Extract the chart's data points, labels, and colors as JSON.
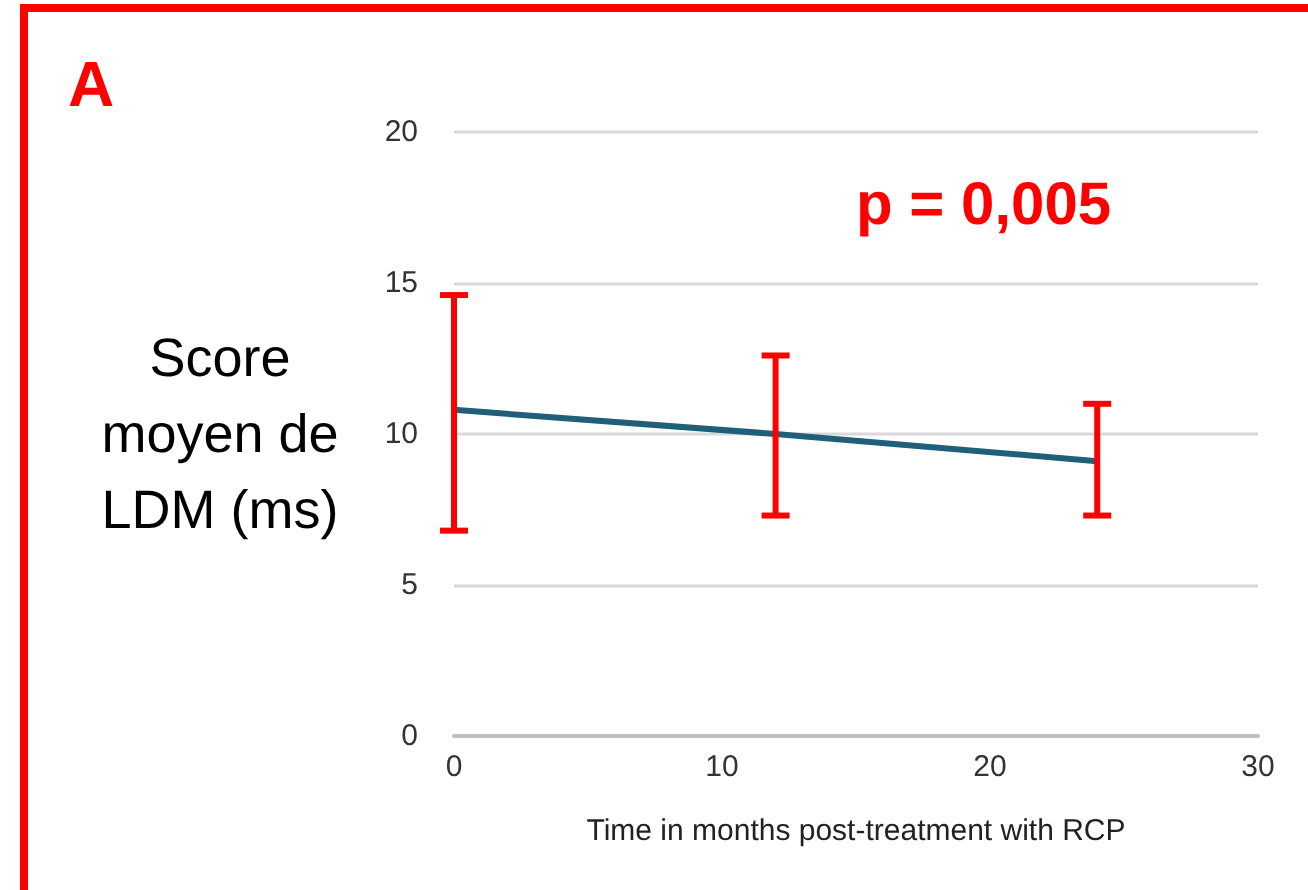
{
  "chart_data": {
    "type": "line",
    "xlabel": "Time in months post-treatment with RCP",
    "ylabel": "Score moyen de LDM (ms)",
    "annotations": [
      "A",
      "p = 0,005"
    ],
    "x": [
      0,
      12,
      24
    ],
    "series": [
      {
        "color": "#1f5f7a",
        "values": [
          10.8,
          10.0,
          9.1
        ],
        "errors": [
          [
            6.8,
            14.6
          ],
          [
            7.3,
            12.6
          ],
          [
            7.3,
            11.0
          ]
        ]
      }
    ],
    "xlim": [
      0,
      30
    ],
    "xticks": [
      0,
      10,
      20,
      30
    ],
    "ylim": [
      0,
      20
    ],
    "yticks": [
      0,
      5,
      10,
      15,
      20
    ],
    "grid": "y",
    "marker": "none",
    "line_style": "solid"
  }
}
